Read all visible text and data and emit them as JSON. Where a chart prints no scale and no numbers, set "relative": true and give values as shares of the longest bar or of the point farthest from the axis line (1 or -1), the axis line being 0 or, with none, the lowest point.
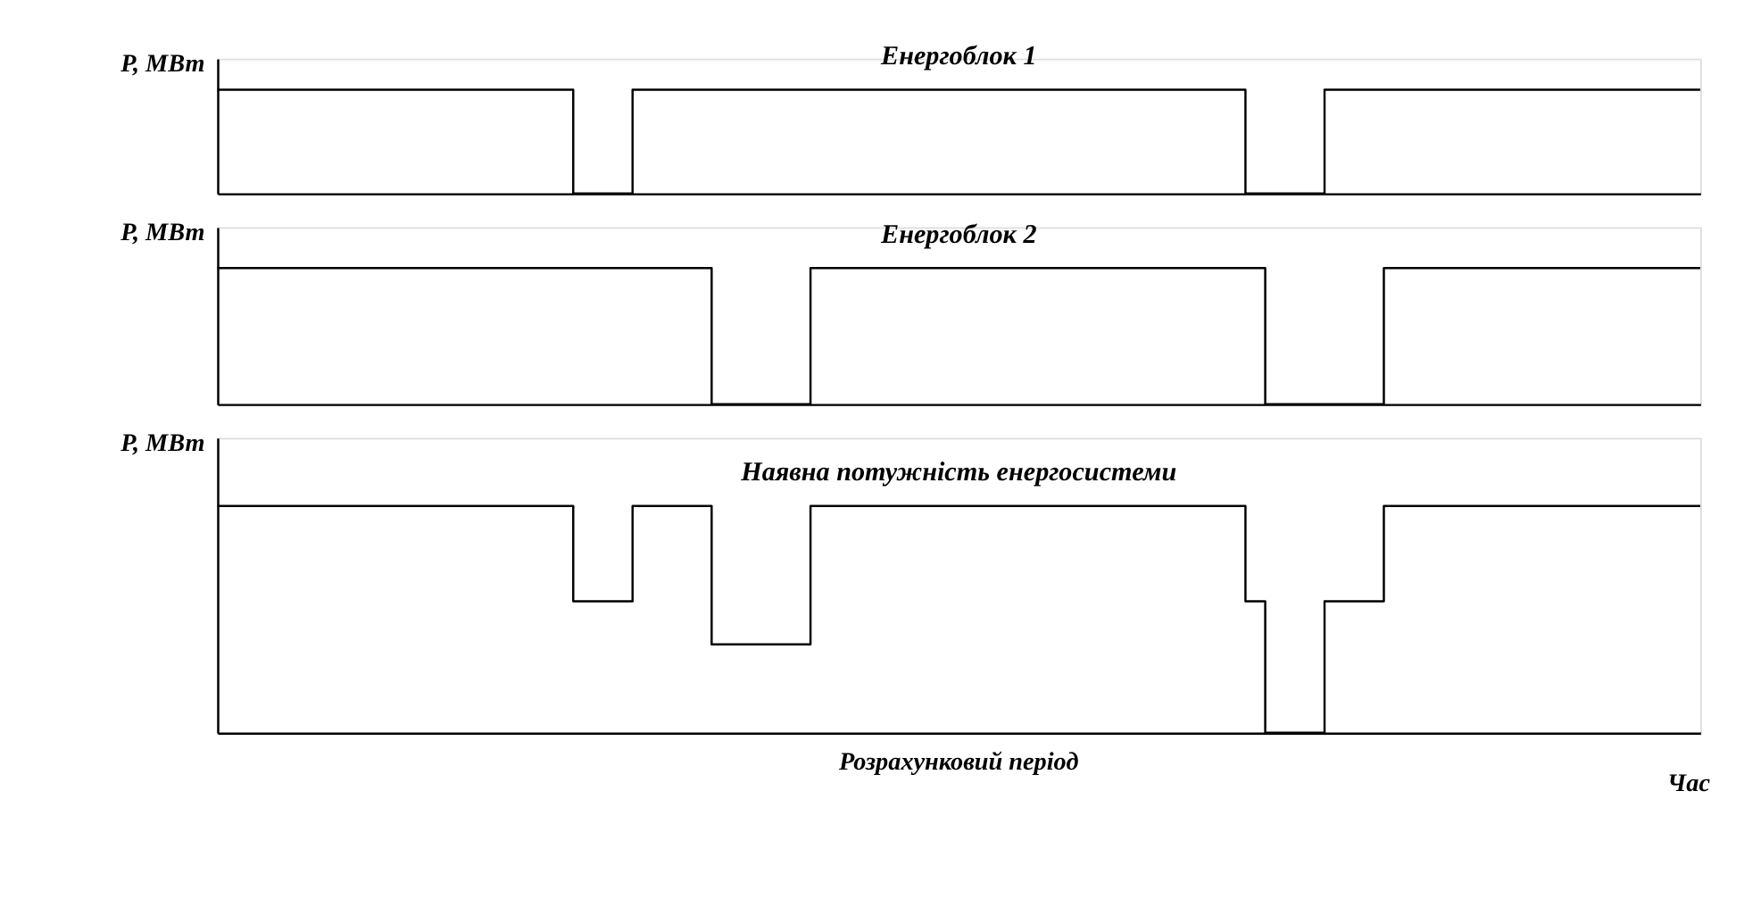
{
  "chart_data": [
    {
      "type": "step",
      "relative": true,
      "ylabel": "P, МВт",
      "grid": false,
      "categories": [
        null,
        null,
        null,
        null,
        null,
        null,
        null,
        null,
        null,
        null,
        null,
        null,
        null,
        null,
        null,
        null,
        null,
        null,
        null,
        null,
        null,
        null,
        null,
        null,
        null,
        null,
        null,
        null,
        null,
        null,
        null,
        null,
        null,
        null,
        null,
        null,
        null,
        null,
        null,
        null,
        null,
        null,
        null,
        null,
        null,
        null,
        null,
        null,
        null,
        null,
        null,
        null,
        null,
        null,
        null,
        null,
        null,
        null,
        null,
        null,
        null,
        null,
        null,
        null,
        null,
        null,
        null,
        null,
        null,
        null,
        null,
        null,
        null,
        null,
        null,
        null
      ],
      "series": [
        {
          "name": "Енергоблок 1",
          "color": "#000000",
          "values": [
            1,
            1,
            1,
            1,
            1,
            1,
            1,
            1,
            1,
            1,
            1,
            1,
            1,
            1,
            1,
            1,
            1,
            1,
            0,
            0,
            0,
            1,
            1,
            1,
            1,
            1,
            1,
            1,
            1,
            1,
            1,
            1,
            1,
            1,
            1,
            1,
            1,
            1,
            1,
            1,
            1,
            1,
            1,
            1,
            1,
            1,
            1,
            1,
            1,
            1,
            1,
            1,
            0,
            0,
            0,
            0,
            1,
            1,
            1,
            1,
            1,
            1,
            1,
            1,
            1,
            1,
            1,
            1,
            1,
            1,
            1,
            1,
            1,
            1,
            1,
            1
          ]
        }
      ]
    },
    {
      "type": "step",
      "relative": true,
      "ylabel": "P, МВт",
      "grid": false,
      "categories": [
        null,
        null,
        null,
        null,
        null,
        null,
        null,
        null,
        null,
        null,
        null,
        null,
        null,
        null,
        null,
        null,
        null,
        null,
        null,
        null,
        null,
        null,
        null,
        null,
        null,
        null,
        null,
        null,
        null,
        null,
        null,
        null,
        null,
        null,
        null,
        null,
        null,
        null,
        null,
        null,
        null,
        null,
        null,
        null,
        null,
        null,
        null,
        null,
        null,
        null,
        null,
        null,
        null,
        null,
        null,
        null,
        null,
        null,
        null,
        null,
        null,
        null,
        null,
        null,
        null,
        null,
        null,
        null,
        null,
        null,
        null,
        null,
        null,
        null,
        null,
        null
      ],
      "series": [
        {
          "name": "Енергоблок 2",
          "color": "#000000",
          "values": [
            1,
            1,
            1,
            1,
            1,
            1,
            1,
            1,
            1,
            1,
            1,
            1,
            1,
            1,
            1,
            1,
            1,
            1,
            1,
            1,
            1,
            1,
            1,
            1,
            1,
            0,
            0,
            0,
            0,
            0,
            1,
            1,
            1,
            1,
            1,
            1,
            1,
            1,
            1,
            1,
            1,
            1,
            1,
            1,
            1,
            1,
            1,
            1,
            1,
            1,
            1,
            1,
            1,
            0,
            0,
            0,
            0,
            0,
            0,
            1,
            1,
            1,
            1,
            1,
            1,
            1,
            1,
            1,
            1,
            1,
            1,
            1,
            1,
            1,
            1,
            1
          ]
        }
      ]
    },
    {
      "type": "step",
      "relative": true,
      "ylabel": "P, МВт",
      "xlabel": "Час",
      "annotations": [
        "Розрахунковий період"
      ],
      "grid": false,
      "categories": [
        null,
        null,
        null,
        null,
        null,
        null,
        null,
        null,
        null,
        null,
        null,
        null,
        null,
        null,
        null,
        null,
        null,
        null,
        null,
        null,
        null,
        null,
        null,
        null,
        null,
        null,
        null,
        null,
        null,
        null,
        null,
        null,
        null,
        null,
        null,
        null,
        null,
        null,
        null,
        null,
        null,
        null,
        null,
        null,
        null,
        null,
        null,
        null,
        null,
        null,
        null,
        null,
        null,
        null,
        null,
        null,
        null,
        null,
        null,
        null,
        null,
        null,
        null,
        null,
        null,
        null,
        null,
        null,
        null,
        null,
        null,
        null,
        null,
        null,
        null,
        null
      ],
      "series": [
        {
          "name": "Наявна потужність енергосистеми",
          "color": "#000000",
          "values": [
            1,
            1,
            1,
            1,
            1,
            1,
            1,
            1,
            1,
            1,
            1,
            1,
            1,
            1,
            1,
            1,
            1,
            1,
            0.58,
            0.58,
            0.58,
            1,
            1,
            1,
            1,
            0.39,
            0.39,
            0.39,
            0.39,
            0.39,
            1,
            1,
            1,
            1,
            1,
            1,
            1,
            1,
            1,
            1,
            1,
            1,
            1,
            1,
            1,
            1,
            1,
            1,
            1,
            1,
            1,
            1,
            0.58,
            0,
            0,
            0,
            0.58,
            0.58,
            0.58,
            1,
            1,
            1,
            1,
            1,
            1,
            1,
            1,
            1,
            1,
            1,
            1,
            1,
            1,
            1,
            1,
            1
          ]
        }
      ]
    }
  ]
}
